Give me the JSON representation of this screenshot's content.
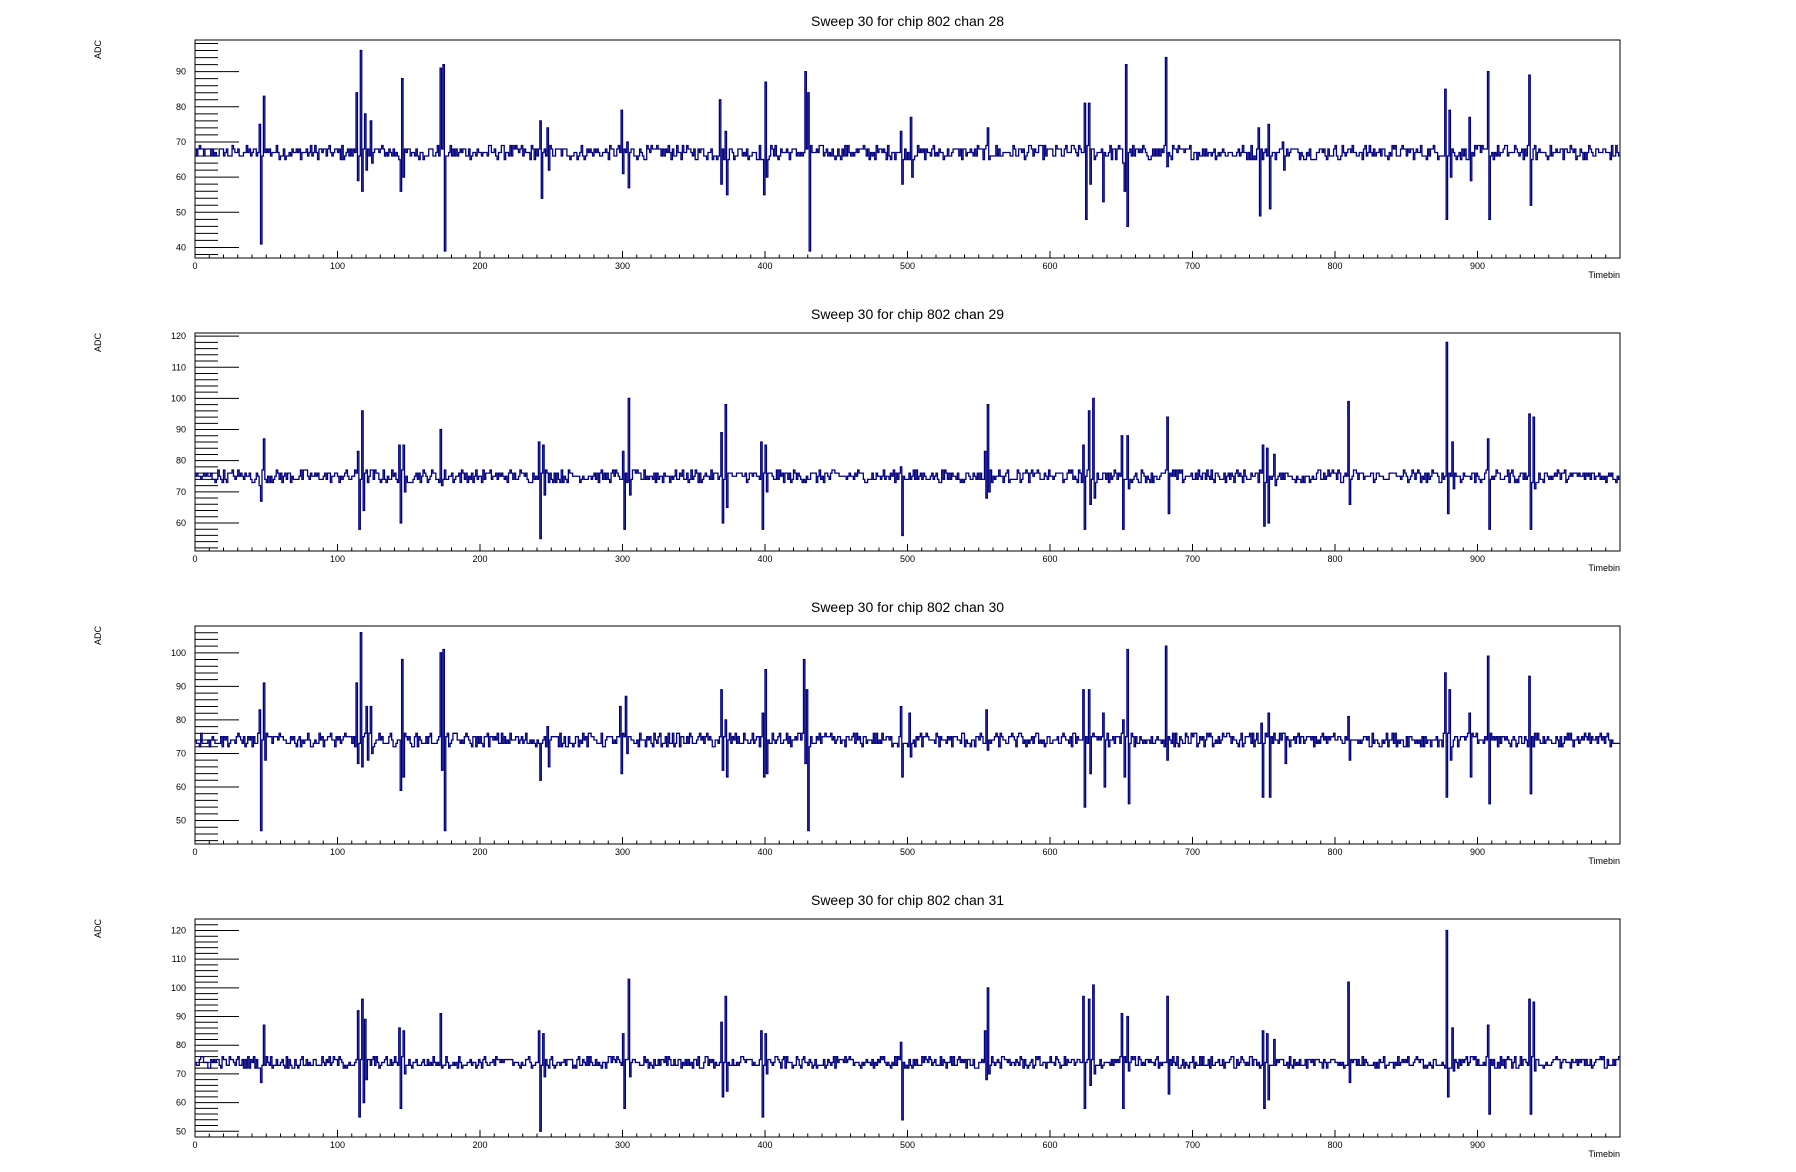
{
  "chart_data": [
    {
      "type": "line",
      "title": "Sweep 30 for chip 802 chan 28",
      "xlabel": "Timebin",
      "ylabel": "ADC",
      "xlim": [
        0,
        1000
      ],
      "ylim": [
        37,
        99
      ],
      "x_ticks": [
        0,
        100,
        200,
        300,
        400,
        500,
        600,
        700,
        800,
        900
      ],
      "y_ticks": [
        40,
        50,
        60,
        70,
        80,
        90
      ],
      "baseline": 67,
      "noise": 1.2,
      "spikes": [
        [
          45,
          75,
          41
        ],
        [
          48,
          83,
          67
        ],
        [
          113,
          84,
          59
        ],
        [
          116,
          96,
          56
        ],
        [
          119,
          78,
          62
        ],
        [
          123,
          76,
          64
        ],
        [
          143,
          65,
          56
        ],
        [
          145,
          88,
          60
        ],
        [
          172,
          91,
          68
        ],
        [
          174,
          92,
          39
        ],
        [
          242,
          76,
          54
        ],
        [
          247,
          74,
          62
        ],
        [
          299,
          79,
          61
        ],
        [
          303,
          70,
          57
        ],
        [
          368,
          82,
          58
        ],
        [
          372,
          73,
          55
        ],
        [
          398,
          65,
          55
        ],
        [
          400,
          87,
          60
        ],
        [
          428,
          90,
          68
        ],
        [
          430,
          84,
          39
        ],
        [
          495,
          73,
          58
        ],
        [
          502,
          77,
          60
        ],
        [
          556,
          74,
          65
        ],
        [
          624,
          81,
          48
        ],
        [
          627,
          81,
          58
        ],
        [
          636,
          68,
          53
        ],
        [
          651,
          64,
          56
        ],
        [
          653,
          92,
          46
        ],
        [
          681,
          94,
          63
        ],
        [
          746,
          74,
          49
        ],
        [
          753,
          75,
          51
        ],
        [
          763,
          70,
          62
        ],
        [
          877,
          85,
          48
        ],
        [
          880,
          79,
          60
        ],
        [
          894,
          77,
          59
        ],
        [
          907,
          90,
          48
        ],
        [
          936,
          89,
          52
        ]
      ],
      "legend": false,
      "grid": false
    },
    {
      "type": "line",
      "title": "Sweep 30 for chip 802 chan 29",
      "xlabel": "Timebin",
      "ylabel": "ADC",
      "xlim": [
        0,
        1000
      ],
      "ylim": [
        51,
        121
      ],
      "x_ticks": [
        0,
        100,
        200,
        300,
        400,
        500,
        600,
        700,
        800,
        900
      ],
      "y_ticks": [
        60,
        70,
        80,
        90,
        100,
        110,
        120
      ],
      "baseline": 75,
      "noise": 1.2,
      "spikes": [
        [
          45,
          72,
          67
        ],
        [
          48,
          87,
          74
        ],
        [
          114,
          83,
          58
        ],
        [
          117,
          96,
          64
        ],
        [
          143,
          85,
          60
        ],
        [
          146,
          85,
          70
        ],
        [
          172,
          90,
          72
        ],
        [
          241,
          86,
          55
        ],
        [
          244,
          85,
          69
        ],
        [
          300,
          83,
          58
        ],
        [
          304,
          100,
          69
        ],
        [
          369,
          89,
          60
        ],
        [
          372,
          98,
          65
        ],
        [
          397,
          86,
          58
        ],
        [
          400,
          85,
          70
        ],
        [
          495,
          78,
          56
        ],
        [
          554,
          83,
          68
        ],
        [
          556,
          98,
          70
        ],
        [
          623,
          85,
          58
        ],
        [
          627,
          96,
          66
        ],
        [
          630,
          100,
          68
        ],
        [
          650,
          88,
          58
        ],
        [
          654,
          88,
          71
        ],
        [
          682,
          94,
          63
        ],
        [
          749,
          85,
          59
        ],
        [
          752,
          84,
          60
        ],
        [
          757,
          82,
          72
        ],
        [
          809,
          99,
          66
        ],
        [
          878,
          118,
          63
        ],
        [
          882,
          86,
          71
        ],
        [
          907,
          87,
          58
        ],
        [
          936,
          95,
          58
        ],
        [
          939,
          94,
          71
        ]
      ],
      "legend": false,
      "grid": false
    },
    {
      "type": "line",
      "title": "Sweep 30 for chip 802 chan 30",
      "xlabel": "Timebin",
      "ylabel": "ADC",
      "xlim": [
        0,
        1000
      ],
      "ylim": [
        43,
        108
      ],
      "x_ticks": [
        0,
        100,
        200,
        300,
        400,
        500,
        600,
        700,
        800,
        900
      ],
      "y_ticks": [
        50,
        60,
        70,
        80,
        90,
        100
      ],
      "baseline": 74,
      "noise": 1.2,
      "spikes": [
        [
          45,
          83,
          47
        ],
        [
          48,
          91,
          68
        ],
        [
          113,
          91,
          67
        ],
        [
          116,
          106,
          66
        ],
        [
          120,
          84,
          68
        ],
        [
          123,
          84,
          70
        ],
        [
          143,
          74,
          59
        ],
        [
          145,
          98,
          63
        ],
        [
          172,
          100,
          65
        ],
        [
          174,
          101,
          47
        ],
        [
          241,
          73,
          62
        ],
        [
          247,
          78,
          66
        ],
        [
          298,
          84,
          64
        ],
        [
          302,
          87,
          70
        ],
        [
          369,
          89,
          65
        ],
        [
          372,
          80,
          63
        ],
        [
          398,
          82,
          63
        ],
        [
          400,
          95,
          64
        ],
        [
          427,
          98,
          67
        ],
        [
          429,
          89,
          47
        ],
        [
          495,
          84,
          63
        ],
        [
          501,
          82,
          69
        ],
        [
          555,
          83,
          71
        ],
        [
          623,
          89,
          54
        ],
        [
          627,
          89,
          64
        ],
        [
          637,
          82,
          60
        ],
        [
          651,
          80,
          63
        ],
        [
          654,
          101,
          55
        ],
        [
          681,
          102,
          68
        ],
        [
          748,
          79,
          57
        ],
        [
          753,
          82,
          57
        ],
        [
          764,
          76,
          67
        ],
        [
          809,
          81,
          68
        ],
        [
          877,
          94,
          57
        ],
        [
          880,
          89,
          68
        ],
        [
          894,
          82,
          63
        ],
        [
          907,
          99,
          55
        ],
        [
          936,
          93,
          58
        ]
      ],
      "legend": false,
      "grid": false
    },
    {
      "type": "line",
      "title": "Sweep 30 for chip 802 chan 31",
      "xlabel": "Timebin",
      "ylabel": "ADC",
      "xlim": [
        0,
        1000
      ],
      "ylim": [
        48,
        124
      ],
      "x_ticks": [
        0,
        100,
        200,
        300,
        400,
        500,
        600,
        700,
        800,
        900
      ],
      "y_ticks": [
        50,
        60,
        70,
        80,
        90,
        100,
        110,
        120
      ],
      "baseline": 74,
      "noise": 1.2,
      "spikes": [
        [
          45,
          72,
          67
        ],
        [
          48,
          87,
          73
        ],
        [
          114,
          92,
          55
        ],
        [
          117,
          96,
          60
        ],
        [
          119,
          89,
          68
        ],
        [
          143,
          86,
          58
        ],
        [
          146,
          85,
          70
        ],
        [
          172,
          91,
          72
        ],
        [
          241,
          85,
          50
        ],
        [
          244,
          84,
          69
        ],
        [
          300,
          84,
          58
        ],
        [
          304,
          103,
          69
        ],
        [
          369,
          88,
          62
        ],
        [
          372,
          97,
          64
        ],
        [
          397,
          85,
          55
        ],
        [
          400,
          84,
          70
        ],
        [
          495,
          81,
          54
        ],
        [
          554,
          85,
          68
        ],
        [
          556,
          100,
          70
        ],
        [
          623,
          97,
          58
        ],
        [
          627,
          96,
          66
        ],
        [
          630,
          101,
          70
        ],
        [
          650,
          91,
          58
        ],
        [
          654,
          90,
          71
        ],
        [
          682,
          97,
          63
        ],
        [
          749,
          85,
          58
        ],
        [
          752,
          84,
          61
        ],
        [
          757,
          82,
          73
        ],
        [
          809,
          102,
          67
        ],
        [
          878,
          120,
          62
        ],
        [
          882,
          86,
          71
        ],
        [
          907,
          87,
          56
        ],
        [
          936,
          96,
          56
        ],
        [
          939,
          95,
          71
        ]
      ],
      "legend": false,
      "grid": false
    }
  ]
}
